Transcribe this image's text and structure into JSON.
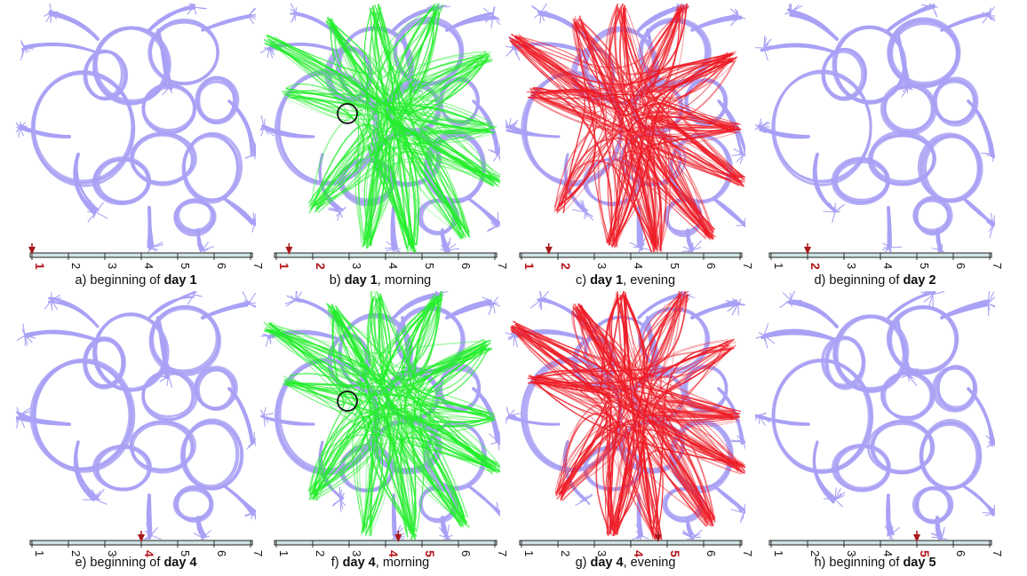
{
  "palette": {
    "base": "#a9a1f5",
    "morning": "#22ee2a",
    "evening": "#ee1c26",
    "marker": "#a8181c",
    "bar_fill": "#cfe1e3",
    "tick_label": "#111111",
    "tick_label_highlight": "#b5161c"
  },
  "timeline_ticks": [
    "1",
    "2",
    "3",
    "4",
    "5",
    "6",
    "7"
  ],
  "panels": [
    {
      "id": "a",
      "prefix": "a) beginning of",
      "bold": "day 1",
      "suffix": "",
      "marker_day": 1.0,
      "overlay": "none",
      "circle": false,
      "highlight_ticks": [
        "1"
      ]
    },
    {
      "id": "b",
      "prefix": "b) ",
      "bold": "day 1",
      "suffix": ", morning",
      "marker_day": 1.35,
      "overlay": "morning",
      "circle": true,
      "highlight_ticks": [
        "1",
        "2"
      ]
    },
    {
      "id": "c",
      "prefix": "c) ",
      "bold": "day 1",
      "suffix": ", evening",
      "marker_day": 1.75,
      "overlay": "evening",
      "circle": false,
      "highlight_ticks": [
        "1",
        "2"
      ]
    },
    {
      "id": "d",
      "prefix": "d) beginning of",
      "bold": "day 2",
      "suffix": "",
      "marker_day": 2.0,
      "overlay": "none",
      "circle": false,
      "highlight_ticks": [
        "2"
      ]
    },
    {
      "id": "e",
      "prefix": "e) beginning of",
      "bold": "day 4",
      "suffix": "",
      "marker_day": 4.0,
      "overlay": "none",
      "circle": false,
      "highlight_ticks": [
        "4"
      ]
    },
    {
      "id": "f",
      "prefix": "f) ",
      "bold": "day 4",
      "suffix": ", morning",
      "marker_day": 4.35,
      "overlay": "morning",
      "circle": true,
      "highlight_ticks": [
        "4",
        "5"
      ]
    },
    {
      "id": "g",
      "prefix": "g) ",
      "bold": "day 4",
      "suffix": ", evening",
      "marker_day": 4.75,
      "overlay": "evening",
      "circle": false,
      "highlight_ticks": [
        "4",
        "5"
      ]
    },
    {
      "id": "h",
      "prefix": "h) beginning of",
      "bold": "day 5",
      "suffix": "",
      "marker_day": 5.0,
      "overlay": "none",
      "circle": false,
      "highlight_ticks": [
        "5"
      ]
    }
  ]
}
